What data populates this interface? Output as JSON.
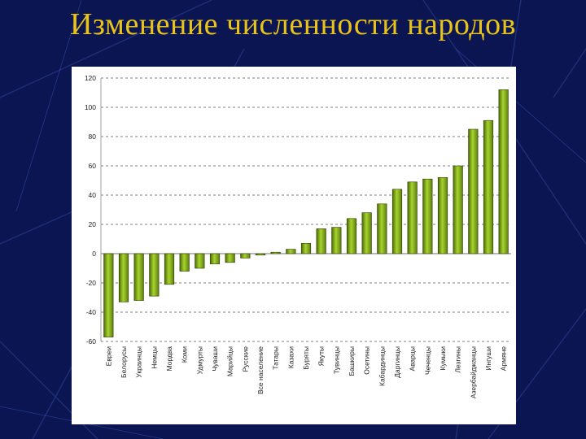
{
  "slide": {
    "title": "Изменение численности народов"
  },
  "colors": {
    "background": "#0a1552",
    "title": "#e8c41a",
    "bar": "#7a9e1c",
    "bar_edge": "#2e3d05"
  },
  "chart_data": {
    "type": "bar",
    "title": "",
    "xlabel": "",
    "ylabel": "",
    "ylim": [
      -60,
      120
    ],
    "yticks": [
      120,
      100,
      80,
      60,
      40,
      20,
      0,
      -20,
      -40,
      -60
    ],
    "grid": "horizontal dashed",
    "categories": [
      "Евреи",
      "Белорусы",
      "Украинцы",
      "Немцы",
      "Мордва",
      "Коми",
      "Удмурты",
      "Чуваши",
      "Марийцы",
      "Русские",
      "Все население",
      "Татары",
      "Казахи",
      "Буряты",
      "Якуты",
      "Тувинцы",
      "Башкиры",
      "Осетины",
      "Кабардинцы",
      "Даргинцы",
      "Аварцы",
      "Чеченцы",
      "Кумыки",
      "Лезгины",
      "Азербайджанцы",
      "Ингуши",
      "Армяне"
    ],
    "values": [
      -57,
      -33,
      -32,
      -29,
      -21,
      -12,
      -10,
      -7,
      -6,
      -3,
      -1,
      1,
      3,
      7,
      17,
      18,
      24,
      28,
      34,
      44,
      49,
      51,
      52,
      60,
      85,
      91,
      112
    ]
  }
}
